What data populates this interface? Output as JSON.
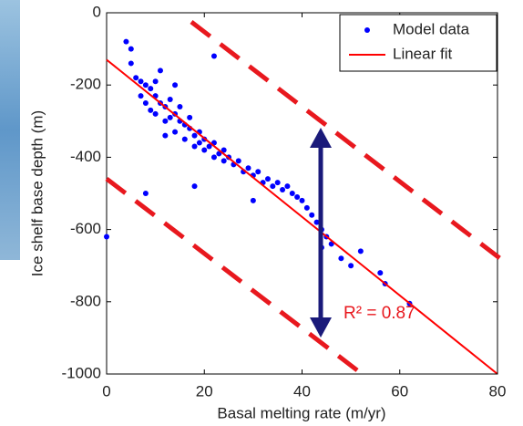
{
  "chart_data": {
    "type": "scatter",
    "xlabel": "Basal melting rate (m/yr)",
    "ylabel": "Ice shelf base depth (m)",
    "annotation": "R² = 0.87",
    "xlim": [
      0,
      80
    ],
    "xticks": [
      0,
      20,
      40,
      60,
      80
    ],
    "ylim": [
      -1000,
      0
    ],
    "yticks": [
      0,
      -200,
      -400,
      -600,
      -800,
      -1000
    ],
    "legend": "upper right",
    "series": [
      {
        "name": "Model data",
        "color": "#0000ff",
        "x": [
          4,
          5,
          5,
          6,
          7,
          7,
          8,
          8,
          9,
          9,
          10,
          10,
          10,
          11,
          11,
          12,
          12,
          13,
          13,
          14,
          14,
          15,
          15,
          16,
          16,
          17,
          17,
          18,
          18,
          19,
          19,
          20,
          20,
          21,
          22,
          22,
          23,
          24,
          24,
          25,
          26,
          27,
          28,
          29,
          30,
          31,
          32,
          33,
          34,
          35,
          36,
          37,
          38,
          39,
          40,
          41,
          42,
          43,
          44,
          45,
          44,
          46,
          48,
          50,
          52,
          56,
          57,
          62,
          0,
          8,
          22,
          18,
          30,
          14,
          12
        ],
        "values": [
          -80,
          -100,
          -140,
          -180,
          -190,
          -230,
          -200,
          -250,
          -210,
          -270,
          -230,
          -190,
          -280,
          -250,
          -160,
          -260,
          -300,
          -240,
          -290,
          -280,
          -330,
          -300,
          -260,
          -310,
          -350,
          -320,
          -290,
          -340,
          -370,
          -330,
          -360,
          -350,
          -380,
          -370,
          -360,
          -400,
          -390,
          -380,
          -410,
          -400,
          -420,
          -410,
          -440,
          -430,
          -450,
          -440,
          -470,
          -460,
          -480,
          -470,
          -490,
          -480,
          -500,
          -510,
          -520,
          -540,
          -560,
          -580,
          -600,
          -620,
          -650,
          -640,
          -680,
          -700,
          -660,
          -720,
          -750,
          -805,
          -620,
          -500,
          -120,
          -480,
          -520,
          -200,
          -340
        ]
      },
      {
        "name": "Linear fit",
        "color": "#ff0000",
        "type": "line",
        "x": [
          0,
          80
        ],
        "values": [
          -130,
          -1000
        ]
      }
    ]
  }
}
